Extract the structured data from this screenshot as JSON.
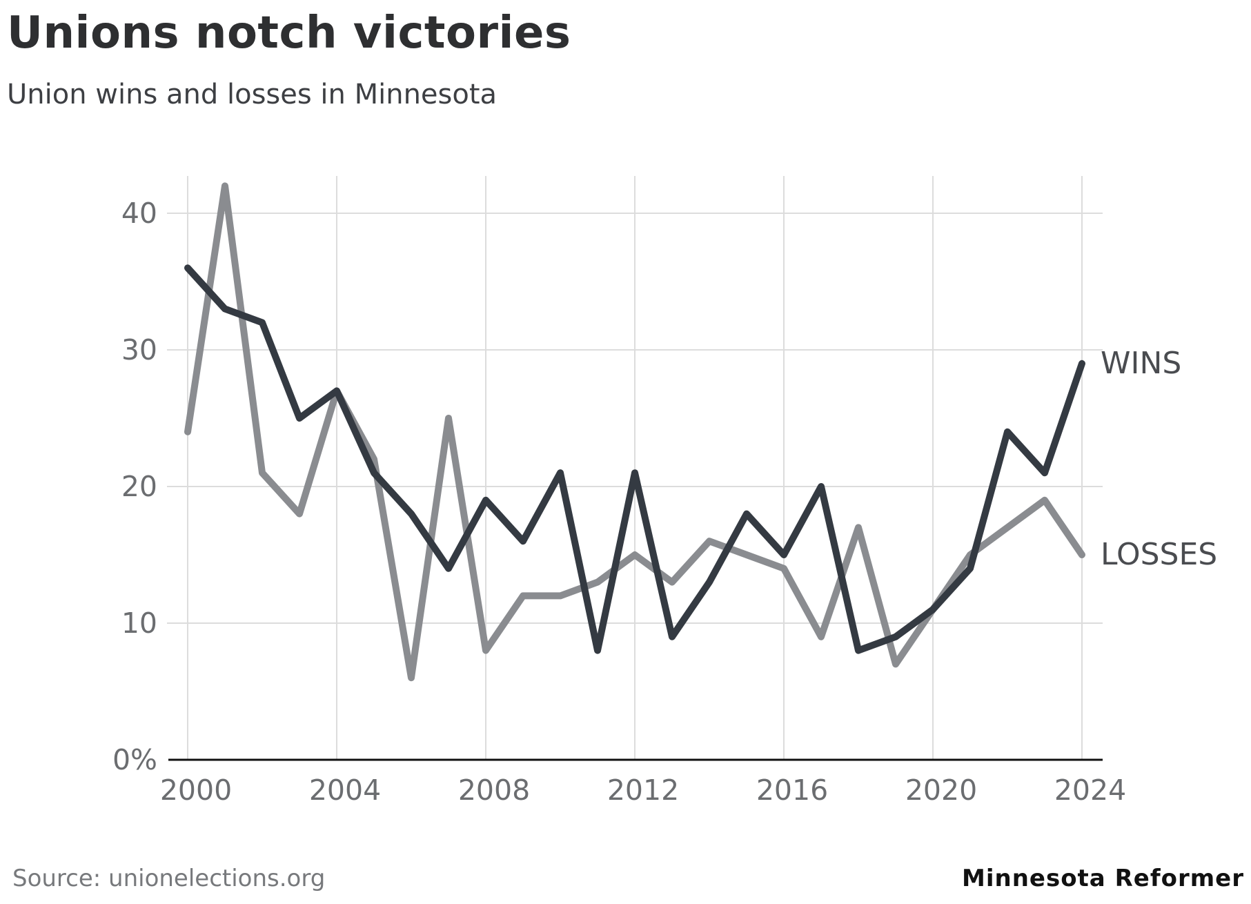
{
  "header": {
    "title": "Unions notch victories",
    "subtitle": "Union wins and losses in Minnesota"
  },
  "footer": {
    "source": "Source: unionelections.org",
    "brand": "Minnesota Reformer"
  },
  "colors": {
    "wins": "#343a42",
    "losses": "#8a8c90",
    "grid": "#dcdcdc",
    "axis": "#111111",
    "tick_text": "#6b6d70"
  },
  "chart_data": {
    "type": "line",
    "x": [
      2000,
      2001,
      2002,
      2003,
      2004,
      2005,
      2006,
      2007,
      2008,
      2009,
      2010,
      2011,
      2012,
      2013,
      2014,
      2015,
      2016,
      2017,
      2018,
      2019,
      2020,
      2021,
      2022,
      2023,
      2024
    ],
    "series": [
      {
        "name": "WINS",
        "color": "#343a42",
        "values": [
          36,
          33,
          32,
          25,
          27,
          21,
          18,
          14,
          19,
          16,
          21,
          8,
          21,
          9,
          13,
          18,
          15,
          20,
          8,
          9,
          11,
          14,
          24,
          21,
          29
        ]
      },
      {
        "name": "LOSSES",
        "color": "#8a8c90",
        "values": [
          24,
          42,
          21,
          18,
          27,
          22,
          6,
          25,
          8,
          12,
          12,
          13,
          15,
          13,
          16,
          15,
          14,
          9,
          17,
          7,
          11,
          15,
          17,
          19,
          15
        ]
      }
    ],
    "x_ticks": [
      2000,
      2004,
      2008,
      2012,
      2016,
      2020,
      2024
    ],
    "x_tick_labels": [
      "2000",
      "2004",
      "2008",
      "2012",
      "2016",
      "2020",
      "2024"
    ],
    "y_ticks": [
      0,
      10,
      20,
      30,
      40
    ],
    "y_tick_labels": [
      "0%",
      "10",
      "20",
      "30",
      "40"
    ],
    "xlim": [
      2000,
      2024
    ],
    "ylim": [
      0,
      42
    ],
    "grid": true,
    "legend": "direct labels at line ends",
    "title": "Unions notch victories",
    "subtitle": "Union wins and losses in Minnesota",
    "xlabel": "",
    "ylabel": ""
  }
}
